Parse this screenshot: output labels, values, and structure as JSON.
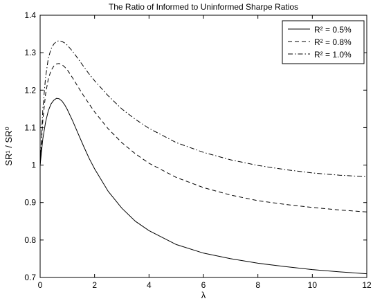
{
  "chart_data": {
    "type": "line",
    "title": "The Ratio of Informed to Uninformed Sharpe Ratios",
    "xlabel": "λ",
    "ylabel": "SR¹ / SR⁰",
    "xlim": [
      0,
      12
    ],
    "ylim": [
      0.7,
      1.4
    ],
    "xticks": [
      0,
      2,
      4,
      6,
      8,
      10,
      12
    ],
    "yticks": [
      0.7,
      0.8,
      0.9,
      1.0,
      1.1,
      1.2,
      1.3,
      1.4
    ],
    "xtick_labels": [
      "0",
      "2",
      "4",
      "6",
      "8",
      "10",
      "12"
    ],
    "ytick_labels": [
      "0.7",
      "0.8",
      "0.9",
      "1",
      "1.1",
      "1.2",
      "1.3",
      "1.4"
    ],
    "grid": false,
    "legend_position": "top-right",
    "series": [
      {
        "name": "R² = 0.5%",
        "dash": "solid",
        "x": [
          0,
          0.1,
          0.2,
          0.3,
          0.4,
          0.5,
          0.6,
          0.7,
          0.8,
          0.9,
          1.0,
          1.2,
          1.4,
          1.6,
          1.8,
          2.0,
          2.5,
          3.0,
          3.5,
          4.0,
          5.0,
          6.0,
          7.0,
          8.0,
          9.0,
          10.0,
          11.0,
          12.0
        ],
        "y": [
          1.0,
          1.07,
          1.115,
          1.145,
          1.163,
          1.173,
          1.178,
          1.177,
          1.171,
          1.161,
          1.148,
          1.117,
          1.083,
          1.05,
          1.018,
          0.99,
          0.93,
          0.885,
          0.85,
          0.825,
          0.788,
          0.765,
          0.75,
          0.738,
          0.729,
          0.721,
          0.715,
          0.71
        ]
      },
      {
        "name": "R² = 0.8%",
        "dash": "dashed",
        "x": [
          0,
          0.1,
          0.2,
          0.3,
          0.4,
          0.5,
          0.6,
          0.7,
          0.8,
          0.9,
          1.0,
          1.2,
          1.4,
          1.6,
          1.8,
          2.0,
          2.5,
          3.0,
          3.5,
          4.0,
          5.0,
          6.0,
          7.0,
          8.0,
          9.0,
          10.0,
          11.0,
          12.0
        ],
        "y": [
          1.0,
          1.12,
          1.19,
          1.23,
          1.252,
          1.264,
          1.27,
          1.271,
          1.268,
          1.262,
          1.254,
          1.232,
          1.208,
          1.185,
          1.163,
          1.142,
          1.097,
          1.06,
          1.03,
          1.005,
          0.967,
          0.94,
          0.92,
          0.905,
          0.895,
          0.887,
          0.88,
          0.875
        ]
      },
      {
        "name": "R² = 1.0%",
        "dash": "dashdot",
        "x": [
          0,
          0.1,
          0.2,
          0.3,
          0.4,
          0.5,
          0.6,
          0.7,
          0.8,
          0.9,
          1.0,
          1.2,
          1.4,
          1.6,
          1.8,
          2.0,
          2.5,
          3.0,
          3.5,
          4.0,
          5.0,
          6.0,
          7.0,
          8.0,
          9.0,
          10.0,
          11.0,
          12.0
        ],
        "y": [
          1.0,
          1.15,
          1.235,
          1.285,
          1.31,
          1.323,
          1.33,
          1.332,
          1.33,
          1.326,
          1.32,
          1.303,
          1.283,
          1.263,
          1.243,
          1.225,
          1.185,
          1.15,
          1.122,
          1.098,
          1.06,
          1.034,
          1.014,
          0.999,
          0.988,
          0.979,
          0.973,
          0.969
        ]
      }
    ]
  }
}
